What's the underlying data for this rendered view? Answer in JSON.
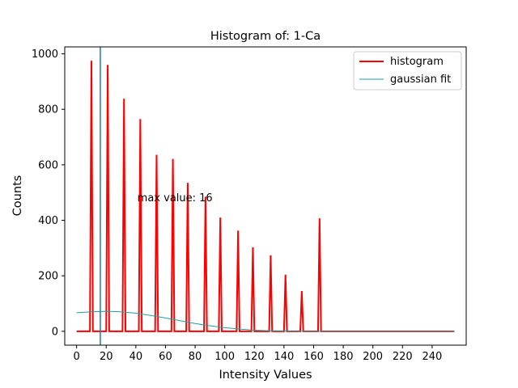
{
  "chart_data": {
    "type": "line",
    "title": "Histogram of: 1-Ca",
    "xlabel": "Intensity Values",
    "ylabel": "Counts",
    "xlim": [
      -8,
      263
    ],
    "ylim": [
      -50,
      1025
    ],
    "xticks": [
      0,
      20,
      40,
      60,
      80,
      100,
      120,
      140,
      160,
      180,
      200,
      220,
      240
    ],
    "yticks": [
      0,
      200,
      400,
      600,
      800,
      1000
    ],
    "legend_position": "top-right",
    "series": [
      {
        "name": "histogram",
        "color": "#ff0000",
        "style": "spikes",
        "spikes": [
          {
            "x": 10,
            "y": 975
          },
          {
            "x": 21,
            "y": 960
          },
          {
            "x": 32,
            "y": 838
          },
          {
            "x": 43,
            "y": 765
          },
          {
            "x": 54,
            "y": 636
          },
          {
            "x": 65,
            "y": 621
          },
          {
            "x": 75,
            "y": 535
          },
          {
            "x": 87,
            "y": 485
          },
          {
            "x": 97,
            "y": 410
          },
          {
            "x": 109,
            "y": 363
          },
          {
            "x": 119,
            "y": 303
          },
          {
            "x": 131,
            "y": 274
          },
          {
            "x": 141,
            "y": 204
          },
          {
            "x": 152,
            "y": 145
          },
          {
            "x": 164,
            "y": 407
          }
        ],
        "x_start": 0,
        "x_end": 255
      },
      {
        "name": "gaussian fit",
        "color": "#1f9fa0",
        "style": "curve",
        "x": [
          0,
          10,
          20,
          30,
          40,
          50,
          60,
          70,
          80,
          90,
          100,
          110,
          120,
          130,
          140,
          150,
          160,
          170,
          180,
          200,
          220,
          240,
          255
        ],
        "y": [
          67,
          70,
          72,
          70,
          65,
          57,
          48,
          38,
          28,
          20,
          13,
          8,
          4,
          2,
          1,
          0,
          0,
          0,
          0,
          0,
          0,
          0,
          0
        ]
      }
    ],
    "vline": {
      "x": 16,
      "color": "#1f77b4"
    },
    "annotation": {
      "text": "max value: 16",
      "x": 41,
      "y": 480
    }
  }
}
